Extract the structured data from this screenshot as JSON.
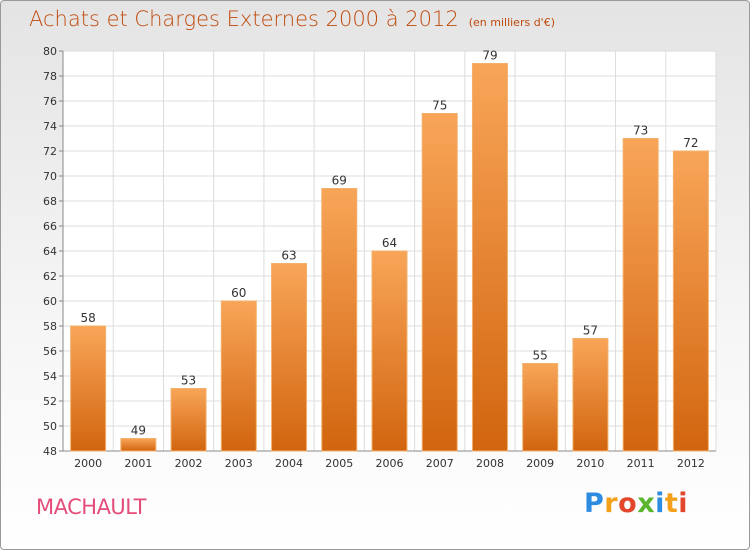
{
  "title": "Achats et Charges Externes 2000 à 2012",
  "subtitle": "(en milliers d'€)",
  "commune": "MACHAULT",
  "logo": "Proxiti",
  "colors": {
    "bar": "#f0913a",
    "title": "#c04a0c",
    "commune": "#e44d7a"
  },
  "chart_data": {
    "type": "bar",
    "title": "Achats et Charges Externes 2000 à 2012",
    "subtitle": "(en milliers d'€)",
    "categories": [
      "2000",
      "2001",
      "2002",
      "2003",
      "2004",
      "2005",
      "2006",
      "2007",
      "2008",
      "2009",
      "2010",
      "2011",
      "2012"
    ],
    "values": [
      58,
      49,
      53,
      60,
      63,
      69,
      64,
      75,
      79,
      55,
      57,
      73,
      72
    ],
    "ylim": [
      48,
      80
    ],
    "yticks": [
      48,
      50,
      52,
      54,
      56,
      58,
      60,
      62,
      64,
      66,
      68,
      70,
      72,
      74,
      76,
      78,
      80
    ],
    "grid": true,
    "xlabel": "",
    "ylabel": ""
  }
}
